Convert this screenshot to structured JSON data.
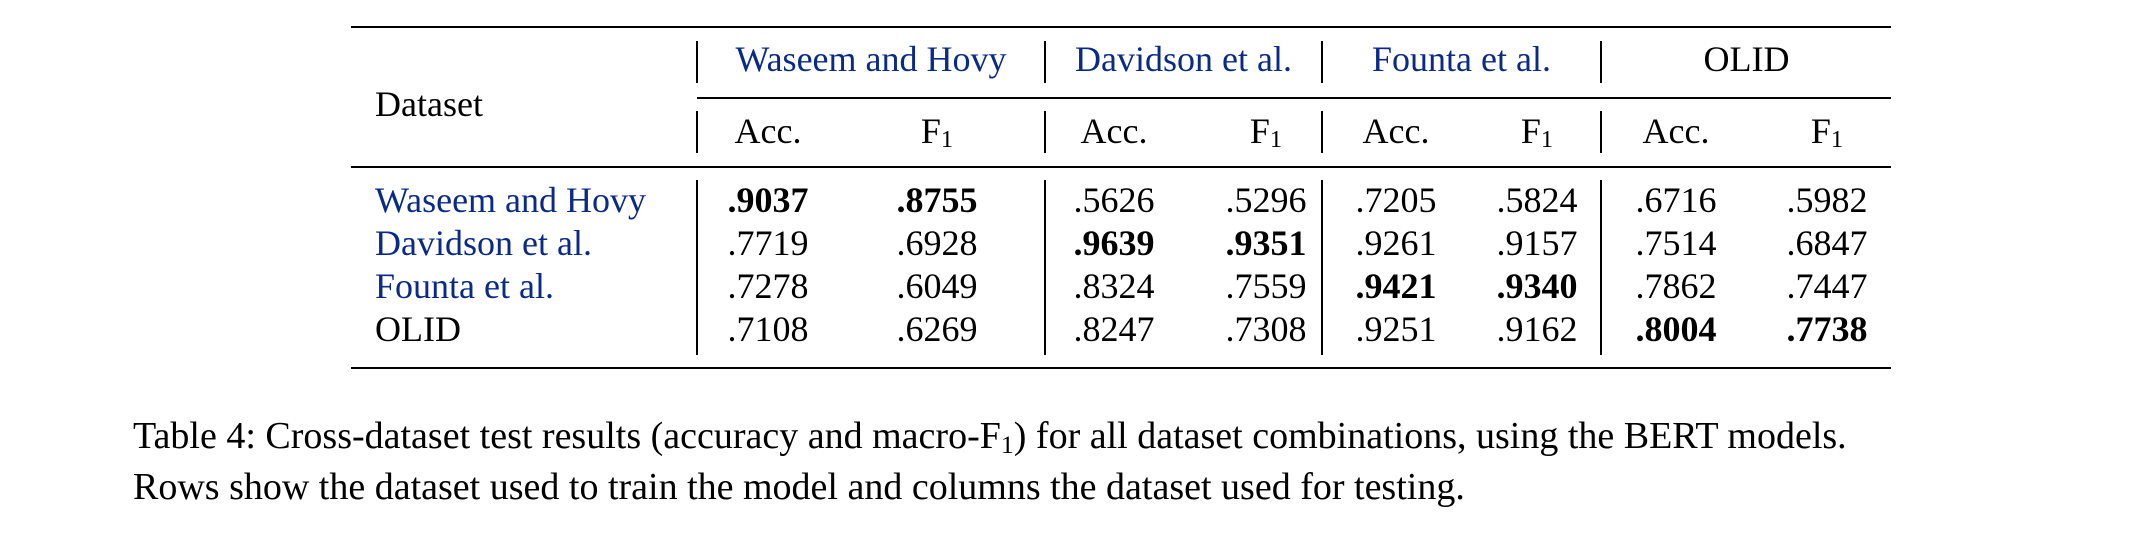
{
  "table": {
    "corner_label": "Dataset",
    "test_groups": [
      {
        "label": "Waseem and Hovy",
        "color": "#0a2a8a"
      },
      {
        "label": "Davidson et al.",
        "color": "#0a2a8a"
      },
      {
        "label": "Founta et al.",
        "color": "#0a2a8a"
      },
      {
        "label": "OLID",
        "color": "#000000"
      }
    ],
    "sub_acc": "Acc.",
    "sub_f": "F",
    "sub_f_index": "1",
    "rows": [
      {
        "label": "Waseem and Hovy",
        "color": "#0a2a8a",
        "values": [
          ".9037",
          ".8755",
          ".5626",
          ".5296",
          ".7205",
          ".5824",
          ".6716",
          ".5982"
        ],
        "bold_pair": 0
      },
      {
        "label": "Davidson et al.",
        "color": "#0a2a8a",
        "values": [
          ".7719",
          ".6928",
          ".9639",
          ".9351",
          ".9261",
          ".9157",
          ".7514",
          ".6847"
        ],
        "bold_pair": 1
      },
      {
        "label": "Founta et al.",
        "color": "#0a2a8a",
        "values": [
          ".7278",
          ".6049",
          ".8324",
          ".7559",
          ".9421",
          ".9340",
          ".7862",
          ".7447"
        ],
        "bold_pair": 2
      },
      {
        "label": "OLID",
        "color": "#000000",
        "values": [
          ".7108",
          ".6269",
          ".8247",
          ".7308",
          ".9251",
          ".9162",
          ".8004",
          ".7738"
        ],
        "bold_pair": 3
      }
    ]
  },
  "caption": {
    "line1_a": "Table 4: Cross-dataset test results (accuracy and macro-F",
    "line1_sub": "1",
    "line1_b": ") for all dataset combinations, using the BERT models.",
    "line2": "Rows show the dataset used to train the model and columns the dataset used for testing."
  }
}
